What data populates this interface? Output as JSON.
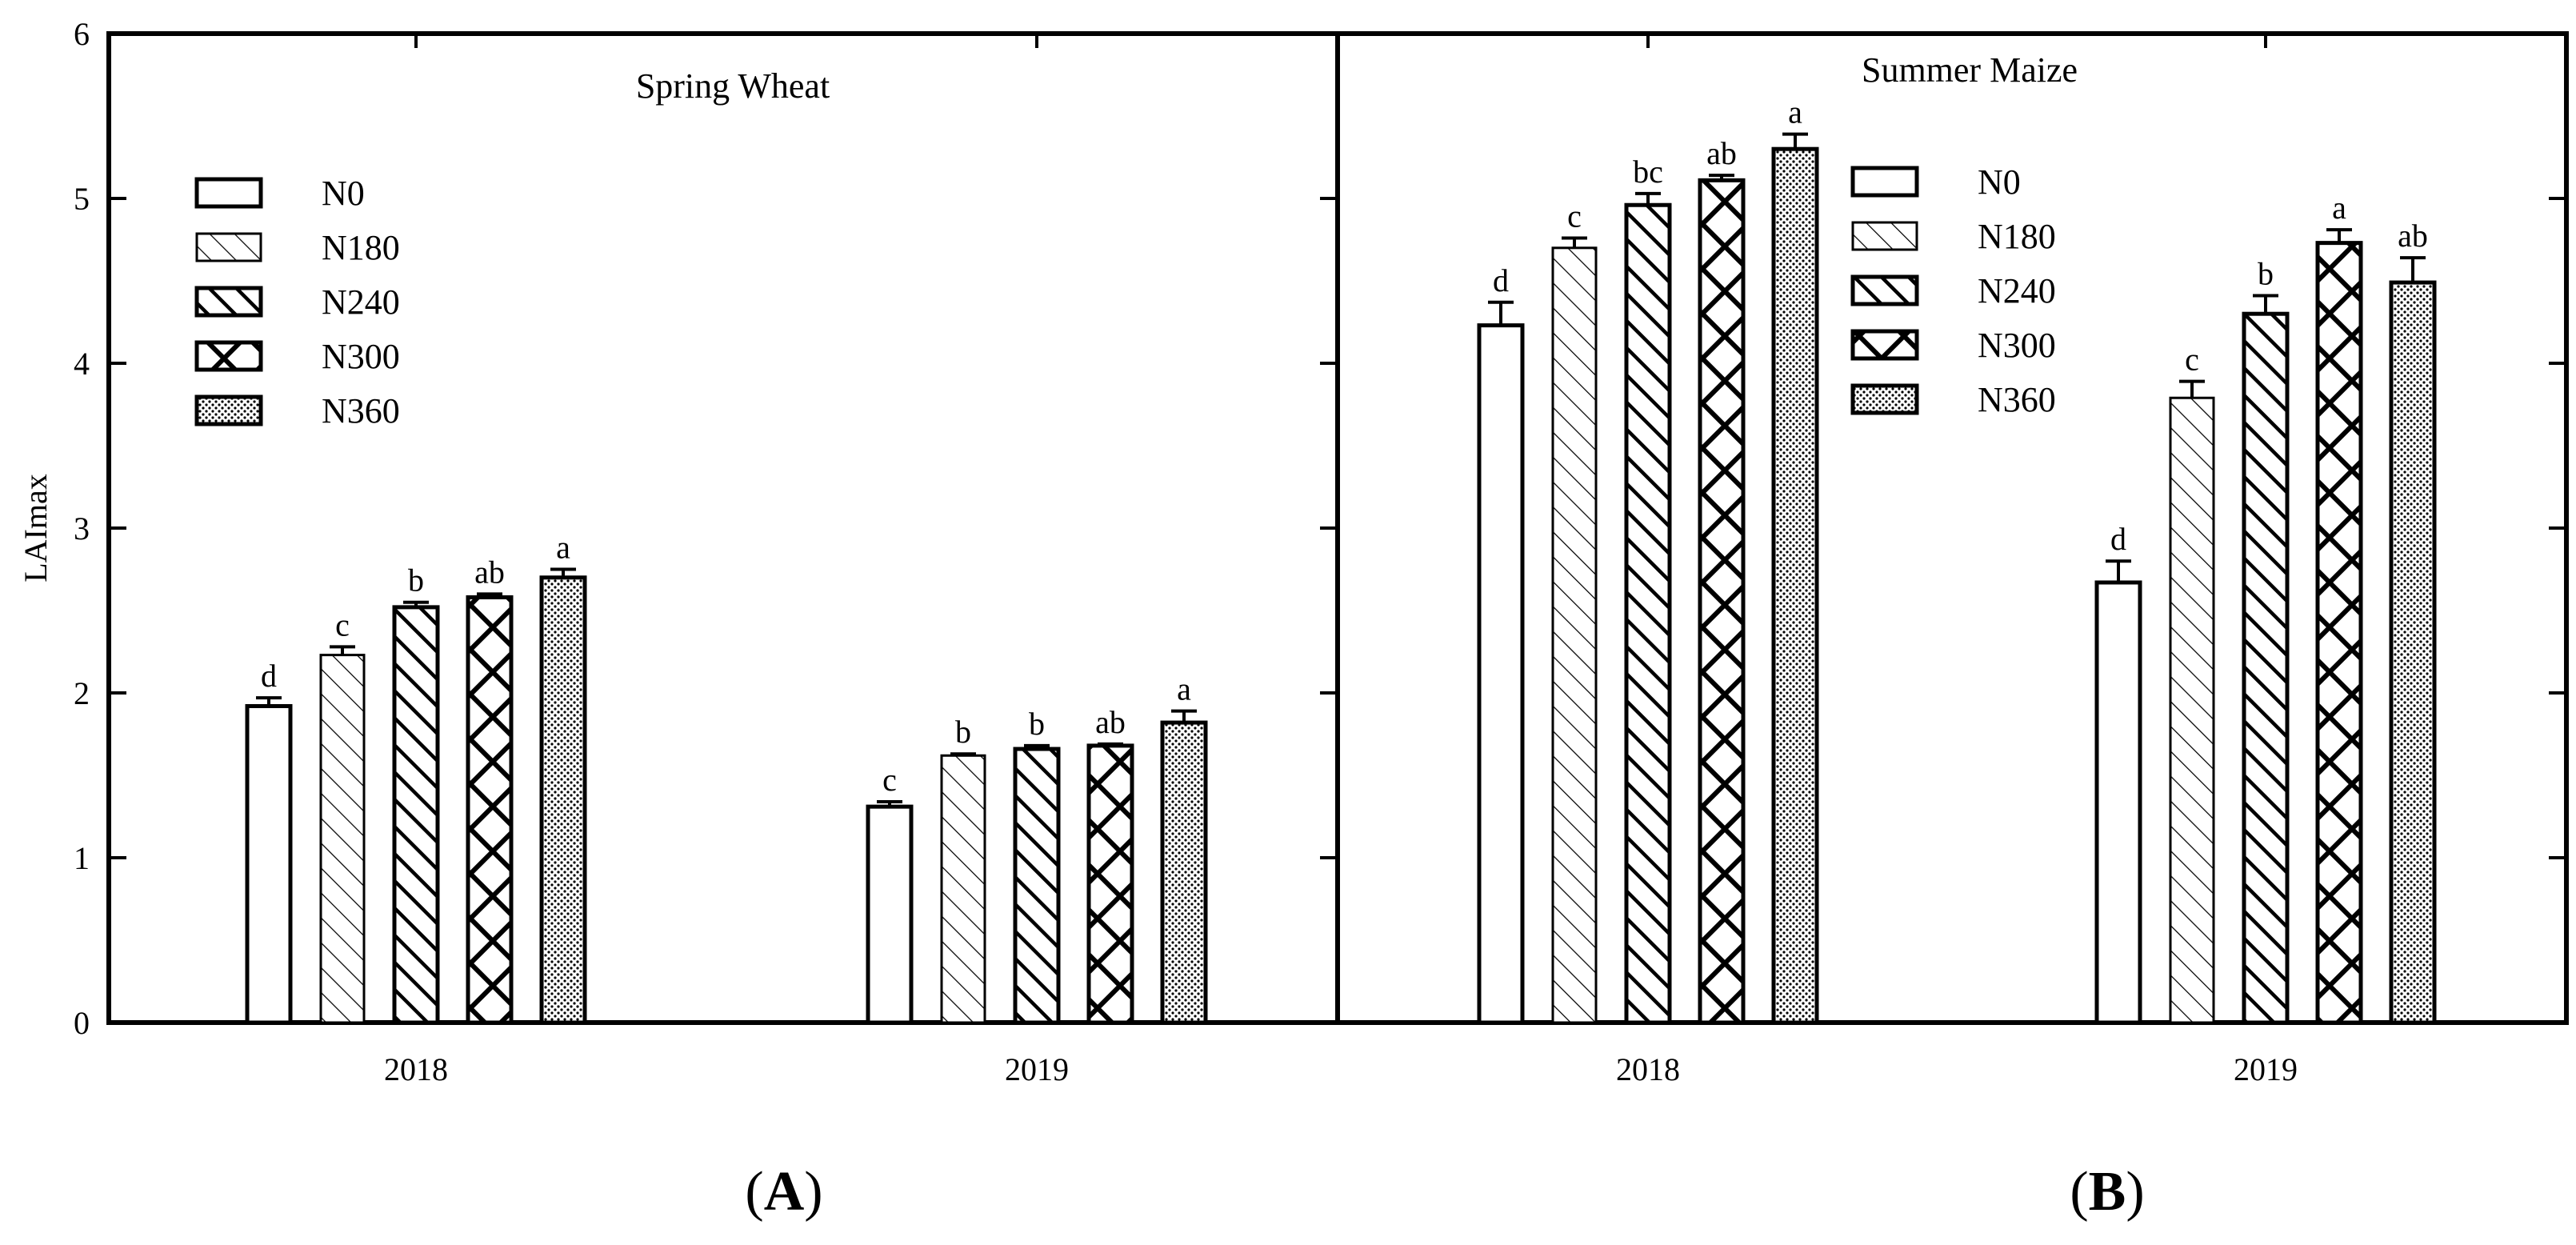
{
  "chart_data": {
    "type": "bar",
    "ylabel": "LAImax",
    "ylim": [
      0,
      6
    ],
    "yticks": [
      "0",
      "1",
      "2",
      "3",
      "4",
      "5",
      "6"
    ],
    "series_names": [
      "N0",
      "N180",
      "N240",
      "N300",
      "N360"
    ],
    "panels": [
      {
        "title": "Spring Wheat",
        "caption_open": "(",
        "caption_letter": "A",
        "caption_close": ")",
        "legend_position": "top-left",
        "categories": [
          "2018",
          "2019"
        ],
        "series": [
          {
            "name": "N0",
            "values": [
              1.92,
              1.31
            ],
            "errors": [
              0.05,
              0.03
            ],
            "sig": [
              "d",
              "c"
            ]
          },
          {
            "name": "N180",
            "values": [
              2.23,
              1.62
            ],
            "errors": [
              0.05,
              0.01
            ],
            "sig": [
              "c",
              "b"
            ]
          },
          {
            "name": "N240",
            "values": [
              2.52,
              1.66
            ],
            "errors": [
              0.03,
              0.02
            ],
            "sig": [
              "b",
              "b"
            ]
          },
          {
            "name": "N300",
            "values": [
              2.58,
              1.68
            ],
            "errors": [
              0.02,
              0.01
            ],
            "sig": [
              "ab",
              "ab"
            ]
          },
          {
            "name": "N360",
            "values": [
              2.7,
              1.82
            ],
            "errors": [
              0.05,
              0.07
            ],
            "sig": [
              "a",
              "a"
            ]
          }
        ]
      },
      {
        "title": "Summer Maize",
        "caption_open": "(",
        "caption_letter": "B",
        "caption_close": ")",
        "legend_position": "top-center",
        "categories": [
          "2018",
          "2019"
        ],
        "series": [
          {
            "name": "N0",
            "values": [
              4.23,
              2.67
            ],
            "errors": [
              0.14,
              0.13
            ],
            "sig": [
              "d",
              "d"
            ]
          },
          {
            "name": "N180",
            "values": [
              4.7,
              3.79
            ],
            "errors": [
              0.06,
              0.1
            ],
            "sig": [
              "c",
              "c"
            ]
          },
          {
            "name": "N240",
            "values": [
              4.96,
              4.3
            ],
            "errors": [
              0.07,
              0.11
            ],
            "sig": [
              "bc",
              "b"
            ]
          },
          {
            "name": "N300",
            "values": [
              5.11,
              4.73
            ],
            "errors": [
              0.03,
              0.08
            ],
            "sig": [
              "ab",
              "a"
            ]
          },
          {
            "name": "N360",
            "values": [
              5.3,
              4.49
            ],
            "errors": [
              0.09,
              0.15
            ],
            "sig": [
              "a",
              "ab"
            ]
          }
        ]
      }
    ]
  }
}
